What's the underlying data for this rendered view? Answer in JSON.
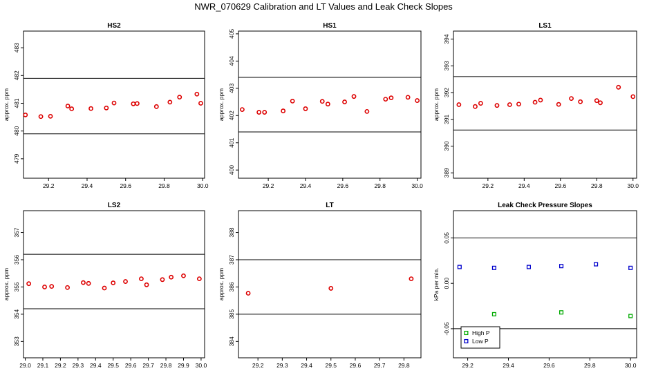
{
  "title": "NWR_070629  Calibration and LT Values and Leak Check Slopes",
  "chart_data": [
    {
      "type": "scatter",
      "title": "HS2",
      "ylabel": "approx. ppm",
      "xlim": [
        29.07,
        30.01
      ],
      "ylim": [
        478.3,
        483.6
      ],
      "xticks": [
        29.2,
        29.4,
        29.6,
        29.8,
        30.0
      ],
      "xtick_labels": [
        "29.2",
        "29.4",
        "29.6",
        "29.8",
        "30.0"
      ],
      "yticks": [
        479,
        480,
        481,
        482,
        483
      ],
      "ytick_labels": [
        "479",
        "480",
        "481",
        "482",
        "483"
      ],
      "hlines": [
        481.9,
        479.9
      ],
      "series": [
        {
          "color": "#dd0000",
          "marker": "circle",
          "x": [
            29.08,
            29.16,
            29.21,
            29.3,
            29.32,
            29.42,
            29.5,
            29.54,
            29.64,
            29.66,
            29.76,
            29.83,
            29.88,
            29.97,
            29.99
          ],
          "y": [
            480.58,
            480.52,
            480.53,
            480.9,
            480.8,
            480.81,
            480.83,
            481.01,
            480.98,
            480.99,
            480.88,
            481.04,
            481.22,
            481.33,
            481.0
          ]
        }
      ]
    },
    {
      "type": "scatter",
      "title": "HS1",
      "ylabel": "approx. ppm",
      "xlim": [
        29.04,
        30.02
      ],
      "ylim": [
        399.7,
        405.1
      ],
      "xticks": [
        29.2,
        29.4,
        29.6,
        29.8,
        30.0
      ],
      "xtick_labels": [
        "29.2",
        "29.4",
        "29.6",
        "29.8",
        "30.0"
      ],
      "yticks": [
        400,
        401,
        402,
        403,
        404,
        405
      ],
      "ytick_labels": [
        "400",
        "401",
        "402",
        "403",
        "404",
        "405"
      ],
      "hlines": [
        403.4,
        401.4
      ],
      "series": [
        {
          "color": "#dd0000",
          "marker": "circle",
          "x": [
            29.06,
            29.15,
            29.18,
            29.28,
            29.33,
            29.4,
            29.49,
            29.52,
            29.61,
            29.66,
            29.73,
            29.83,
            29.86,
            29.95,
            30.0
          ],
          "y": [
            402.22,
            402.12,
            402.12,
            402.17,
            402.53,
            402.25,
            402.52,
            402.42,
            402.5,
            402.7,
            402.15,
            402.6,
            402.65,
            402.67,
            402.55
          ]
        }
      ]
    },
    {
      "type": "scatter",
      "title": "LS1",
      "ylabel": "approx. ppm",
      "xlim": [
        29.01,
        30.02
      ],
      "ylim": [
        388.8,
        394.3
      ],
      "xticks": [
        29.2,
        29.4,
        29.6,
        29.8,
        30.0
      ],
      "xtick_labels": [
        "29.2",
        "29.4",
        "29.6",
        "29.8",
        "30.0"
      ],
      "yticks": [
        389,
        390,
        391,
        392,
        393,
        394
      ],
      "ytick_labels": [
        "389",
        "390",
        "391",
        "392",
        "393",
        "394"
      ],
      "hlines": [
        392.6,
        390.6
      ],
      "series": [
        {
          "color": "#dd0000",
          "marker": "circle",
          "x": [
            29.04,
            29.13,
            29.16,
            29.25,
            29.32,
            29.37,
            29.46,
            29.49,
            29.59,
            29.66,
            29.71,
            29.8,
            29.82,
            29.92,
            30.0
          ],
          "y": [
            391.55,
            391.48,
            391.6,
            391.52,
            391.55,
            391.57,
            391.64,
            391.72,
            391.56,
            391.78,
            391.66,
            391.7,
            391.62,
            392.2,
            391.85
          ]
        }
      ]
    },
    {
      "type": "scatter",
      "title": "LS2",
      "ylabel": "approx. ppm",
      "xlim": [
        28.99,
        30.02
      ],
      "ylim": [
        352.4,
        357.8
      ],
      "xticks": [
        29.0,
        29.1,
        29.2,
        29.3,
        29.4,
        29.5,
        29.6,
        29.7,
        29.8,
        29.9,
        30.0
      ],
      "xtick_labels": [
        "29.0",
        "29.1",
        "29.2",
        "29.3",
        "29.4",
        "29.5",
        "29.6",
        "29.7",
        "29.8",
        "29.9",
        "30.0"
      ],
      "yticks": [
        353,
        354,
        355,
        356,
        357
      ],
      "ytick_labels": [
        "353",
        "354",
        "355",
        "356",
        "357"
      ],
      "hlines": [
        356.2,
        354.2
      ],
      "series": [
        {
          "color": "#dd0000",
          "marker": "circle",
          "x": [
            29.02,
            29.11,
            29.15,
            29.24,
            29.33,
            29.36,
            29.45,
            29.5,
            29.57,
            29.66,
            29.69,
            29.78,
            29.83,
            29.9,
            29.99
          ],
          "y": [
            355.12,
            355.0,
            355.02,
            354.98,
            355.16,
            355.13,
            354.96,
            355.15,
            355.2,
            355.3,
            355.08,
            355.27,
            355.36,
            355.41,
            355.3
          ]
        }
      ]
    },
    {
      "type": "scatter",
      "title": "LT",
      "ylabel": "approx. ppm",
      "xlim": [
        29.12,
        29.87
      ],
      "ylim": [
        383.4,
        388.8
      ],
      "xticks": [
        29.2,
        29.3,
        29.4,
        29.5,
        29.6,
        29.7,
        29.8
      ],
      "xtick_labels": [
        "29.2",
        "29.3",
        "29.4",
        "29.5",
        "29.6",
        "29.7",
        "29.8"
      ],
      "yticks": [
        384,
        385,
        386,
        387,
        388
      ],
      "ytick_labels": [
        "384",
        "385",
        "386",
        "387",
        "388"
      ],
      "hlines": [
        387.0,
        385.0
      ],
      "series": [
        {
          "color": "#dd0000",
          "marker": "circle",
          "x": [
            29.16,
            29.5,
            29.83
          ],
          "y": [
            385.77,
            385.95,
            386.3
          ]
        }
      ]
    },
    {
      "type": "scatter",
      "title": "Leak Check Pressure Slopes",
      "ylabel": "kPa per min.",
      "xlim": [
        29.13,
        30.03
      ],
      "ylim": [
        -0.082,
        0.08
      ],
      "xticks": [
        29.2,
        29.4,
        29.6,
        29.8,
        30.0
      ],
      "xtick_labels": [
        "29.2",
        "29.4",
        "29.6",
        "29.8",
        "30.0"
      ],
      "yticks": [
        -0.05,
        0.0,
        0.05
      ],
      "ytick_labels": [
        "-0.05",
        "0.00",
        "0.05"
      ],
      "hlines": [
        0.05,
        -0.05
      ],
      "legend": "bottom-left",
      "series": [
        {
          "name": "High P",
          "color": "#00aa00",
          "marker": "square",
          "x": [
            29.33,
            29.66,
            30.0
          ],
          "y": [
            -0.034,
            -0.032,
            -0.036
          ]
        },
        {
          "name": "Low P",
          "color": "#0000cc",
          "marker": "square",
          "x": [
            29.16,
            29.33,
            29.5,
            29.66,
            29.83,
            30.0
          ],
          "y": [
            0.018,
            0.017,
            0.018,
            0.019,
            0.021,
            0.017
          ]
        }
      ]
    }
  ]
}
